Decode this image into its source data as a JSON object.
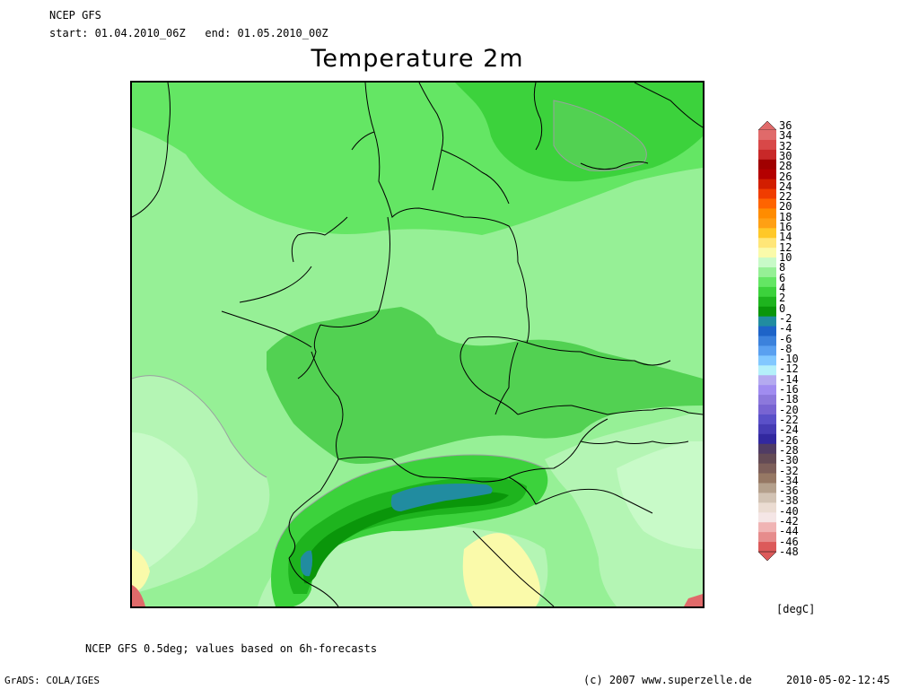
{
  "header": {
    "model": "NCEP GFS",
    "period": "start: 01.04.2010_06Z   end: 01.05.2010_00Z"
  },
  "title": "Temperature 2m",
  "footer": {
    "note": "NCEP GFS 0.5deg; values based on 6h-forecasts",
    "software": "GrADS: COLA/IGES",
    "copyright": "(c) 2007 www.superzelle.de",
    "timestamp": "2010-05-02-12:45"
  },
  "legend": {
    "unit": "[degC]",
    "levels": [
      "36",
      "34",
      "32",
      "30",
      "28",
      "26",
      "24",
      "22",
      "20",
      "18",
      "16",
      "14",
      "12",
      "10",
      "8",
      "6",
      "4",
      "2",
      "0",
      "-2",
      "-4",
      "-6",
      "-8",
      "-10",
      "-12",
      "-14",
      "-16",
      "-18",
      "-20",
      "-22",
      "-24",
      "-26",
      "-28",
      "-30",
      "-32",
      "-34",
      "-36",
      "-38",
      "-40",
      "-42",
      "-44",
      "-46",
      "-48"
    ],
    "colors": [
      "#e06a6a",
      "#d84848",
      "#c82828",
      "#a00000",
      "#b40000",
      "#d21e00",
      "#f03c00",
      "#ff6400",
      "#ff8c00",
      "#ffa014",
      "#ffc828",
      "#ffe678",
      "#fafaaa",
      "#c8fac8",
      "#96f096",
      "#64e664",
      "#3cd23c",
      "#1eb41e",
      "#0a960a",
      "#218ca0",
      "#1e64c8",
      "#3c82dc",
      "#5aa0f0",
      "#82c8ff",
      "#b4f0fa",
      "#b4aaf0",
      "#a08cf0",
      "#8c78dc",
      "#7864d2",
      "#5a50c8",
      "#463cb4",
      "#32289f",
      "#503c64",
      "#644b55",
      "#7d5f5a",
      "#967864",
      "#b4a08c",
      "#d2c3b4",
      "#ebdcd2",
      "#f5e6e6",
      "#f0b4b4",
      "#e68c8c",
      "#dc5a5a"
    ]
  }
}
